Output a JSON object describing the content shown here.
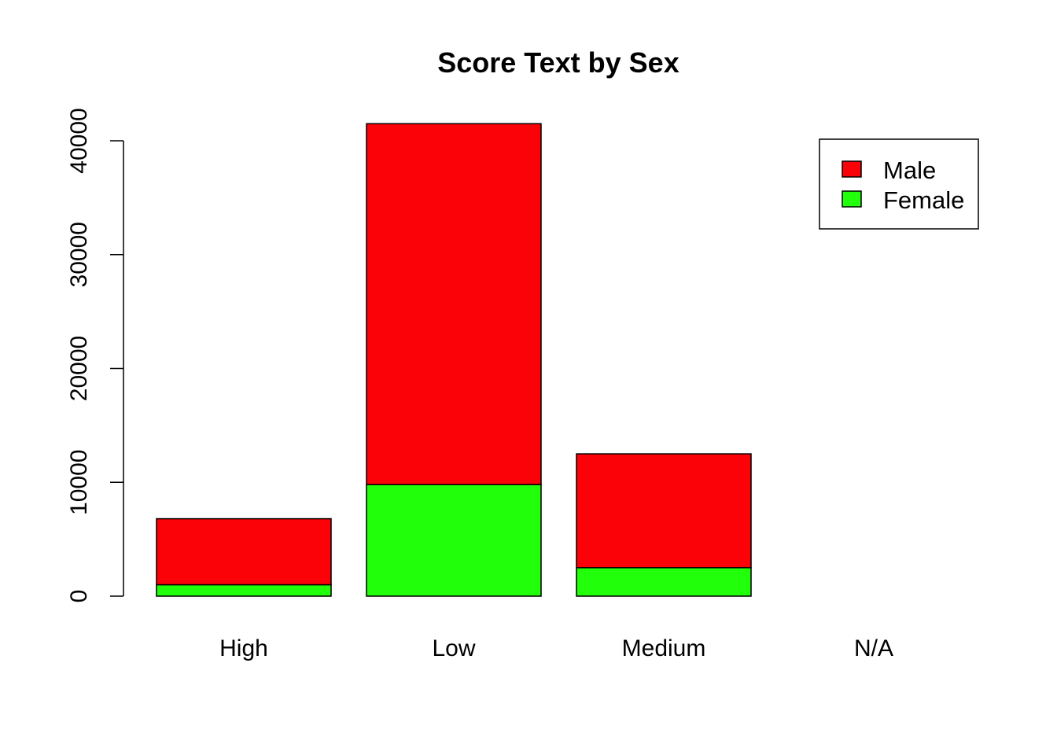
{
  "chart_data": {
    "type": "bar",
    "stacked": true,
    "title": "Score Text by Sex",
    "xlabel": "",
    "ylabel": "",
    "categories": [
      "High",
      "Low",
      "Medium",
      "N/A"
    ],
    "series": [
      {
        "name": "Female",
        "color": "#22ff0a",
        "values": [
          1000,
          9800,
          2500,
          0
        ]
      },
      {
        "name": "Male",
        "color": "#fa0208",
        "values": [
          5800,
          31700,
          10000,
          0
        ]
      }
    ],
    "y_ticks": [
      "0",
      "10000",
      "20000",
      "30000",
      "40000"
    ],
    "y_tick_values": [
      0,
      10000,
      20000,
      30000,
      40000
    ],
    "ylim": [
      0,
      43000
    ],
    "grid": false,
    "legend": {
      "position": "top-right",
      "entries": [
        {
          "label": "Male",
          "color": "#fa0208"
        },
        {
          "label": "Female",
          "color": "#22ff0a"
        }
      ]
    }
  }
}
